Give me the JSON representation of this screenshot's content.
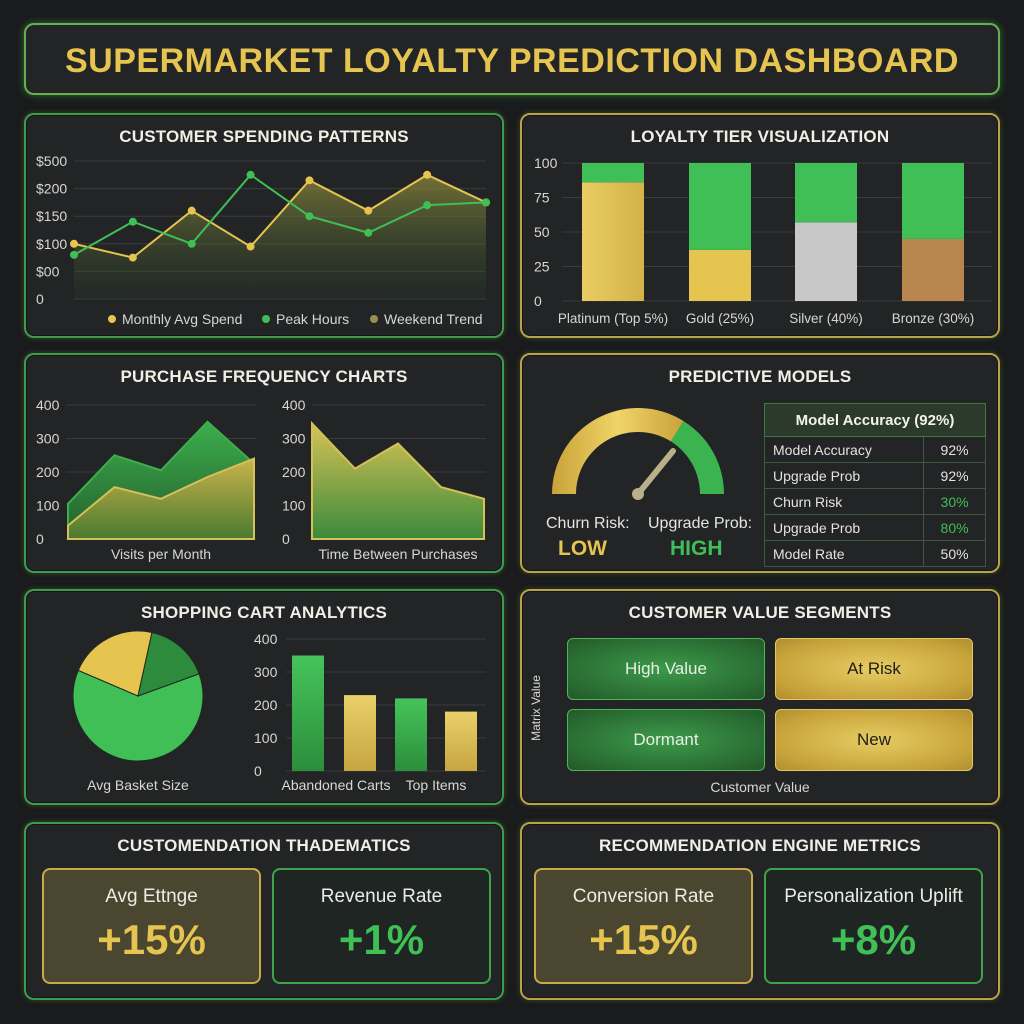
{
  "header": {
    "title": "SUPERMARKET LOYALTY PREDICTION DASHBOARD"
  },
  "colors": {
    "gold": "#e6c450",
    "green": "#3fbf55",
    "silver": "#c8c8c8",
    "bronze": "#b8864e"
  },
  "spending": {
    "title": "CUSTOMER SPENDING PATTERNS",
    "y_ticks": [
      "$500",
      "$200",
      "$150",
      "$100",
      "$00",
      "0"
    ],
    "legend": [
      "Monthly Avg Spend",
      "Peak Hours",
      "Weekend Trend"
    ]
  },
  "tiers": {
    "title": "LOYALTY TIER VISUALIZATION",
    "y_ticks": [
      "100",
      "75",
      "50",
      "25",
      "0"
    ],
    "labels": [
      "Platinum (Top 5%)",
      "Gold (25%)",
      "Silver (40%)",
      "Bronze (30%)"
    ]
  },
  "frequency": {
    "title": "PURCHASE FREQUENCY CHARTS",
    "y_ticks": [
      "400",
      "300",
      "200",
      "100",
      "0"
    ],
    "left_label": "Visits per Month",
    "right_label": "Time Between Purchases"
  },
  "predictive": {
    "title": "PREDICTIVE MODELS",
    "churn_label": "Churn Risk:",
    "churn_value": "LOW",
    "upgrade_label": "Upgrade Prob:",
    "upgrade_value": "HIGH",
    "table_title": "Model Accuracy (92%)",
    "rows": [
      {
        "name": "Model Accuracy",
        "value": "92%"
      },
      {
        "name": "Upgrade Prob",
        "value": "92%"
      },
      {
        "name": "Churn Risk",
        "value": "30%"
      },
      {
        "name": "Upgrade Prob",
        "value": "80%"
      },
      {
        "name": "Model Rate",
        "value": "50%"
      }
    ]
  },
  "cart": {
    "title": "SHOPPING CART ANALYTICS",
    "y_ticks": [
      "400",
      "300",
      "200",
      "100",
      "0"
    ],
    "pie_label": "Avg Basket Size",
    "bar_labels": [
      "Abandoned Carts",
      "Top Items"
    ]
  },
  "segments": {
    "title": "CUSTOMER VALUE SEGMENTS",
    "cells": [
      "High Value",
      "At Risk",
      "Dormant",
      "New"
    ],
    "y_label": "Matrix Value",
    "x_label": "Customer Value"
  },
  "thematics": {
    "title": "CUSTOMENDATION THADEMATICS",
    "kpis": [
      {
        "label": "Avg Ettnge",
        "value": "+15%"
      },
      {
        "label": "Revenue Rate",
        "value": "+1%"
      }
    ]
  },
  "engine": {
    "title": "RECOMMENDATION ENGINE METRICS",
    "kpis": [
      {
        "label": "Conversion Rate",
        "value": "+15%"
      },
      {
        "label": "Personalization Uplift",
        "value": "+8%"
      }
    ]
  },
  "chart_data": [
    {
      "type": "line",
      "title": "CUSTOMER SPENDING PATTERNS",
      "x": [
        1,
        2,
        3,
        4,
        5,
        6,
        7,
        8
      ],
      "ylim": [
        0,
        5
      ],
      "series": [
        {
          "name": "Monthly Avg Spend",
          "values": [
            2.0,
            1.5,
            3.2,
            1.9,
            4.3,
            3.2,
            4.5,
            3.5
          ]
        },
        {
          "name": "Peak Hours",
          "values": [
            1.6,
            2.8,
            2.0,
            4.5,
            3.0,
            2.4,
            3.4,
            3.5
          ]
        },
        {
          "name": "Weekend Trend",
          "values": [
            2.0,
            1.5,
            3.2,
            1.9,
            4.3,
            3.2,
            4.5,
            3.5
          ]
        }
      ],
      "legend": "bottom"
    },
    {
      "type": "bar",
      "title": "LOYALTY TIER VISUALIZATION",
      "categories": [
        "Platinum (Top 5%)",
        "Gold (25%)",
        "Silver (40%)",
        "Bronze (30%)"
      ],
      "series": [
        {
          "values": [
            86,
            37,
            57,
            45
          ]
        },
        {
          "values": [
            14,
            63,
            43,
            55
          ]
        }
      ],
      "ylim": [
        0,
        100
      ],
      "stacked": true
    },
    {
      "type": "area",
      "title": "PURCHASE FREQUENCY CHARTS",
      "xlabel": "Visits per Month",
      "x": [
        1,
        2,
        3,
        4,
        5
      ],
      "series": [
        {
          "values": [
            105,
            250,
            205,
            350,
            225
          ]
        },
        {
          "values": [
            40,
            155,
            120,
            185,
            240
          ]
        }
      ],
      "ylim": [
        0,
        400
      ]
    },
    {
      "type": "area",
      "xlabel": "Time Between Purchases",
      "x": [
        1,
        2,
        3,
        4,
        5
      ],
      "series": [
        {
          "values": [
            345,
            210,
            285,
            155,
            120
          ]
        }
      ],
      "ylim": [
        0,
        400
      ]
    },
    {
      "type": "pie",
      "title": "Avg Basket Size",
      "values": [
        62,
        22,
        16
      ],
      "colors": [
        "#3fbf55",
        "#e6c450",
        "#2e8a3c"
      ]
    },
    {
      "type": "bar",
      "categories": [
        "Abandoned Carts",
        "",
        "Top Items",
        ""
      ],
      "values": [
        350,
        230,
        220,
        180
      ],
      "ylim": [
        0,
        400
      ]
    }
  ]
}
